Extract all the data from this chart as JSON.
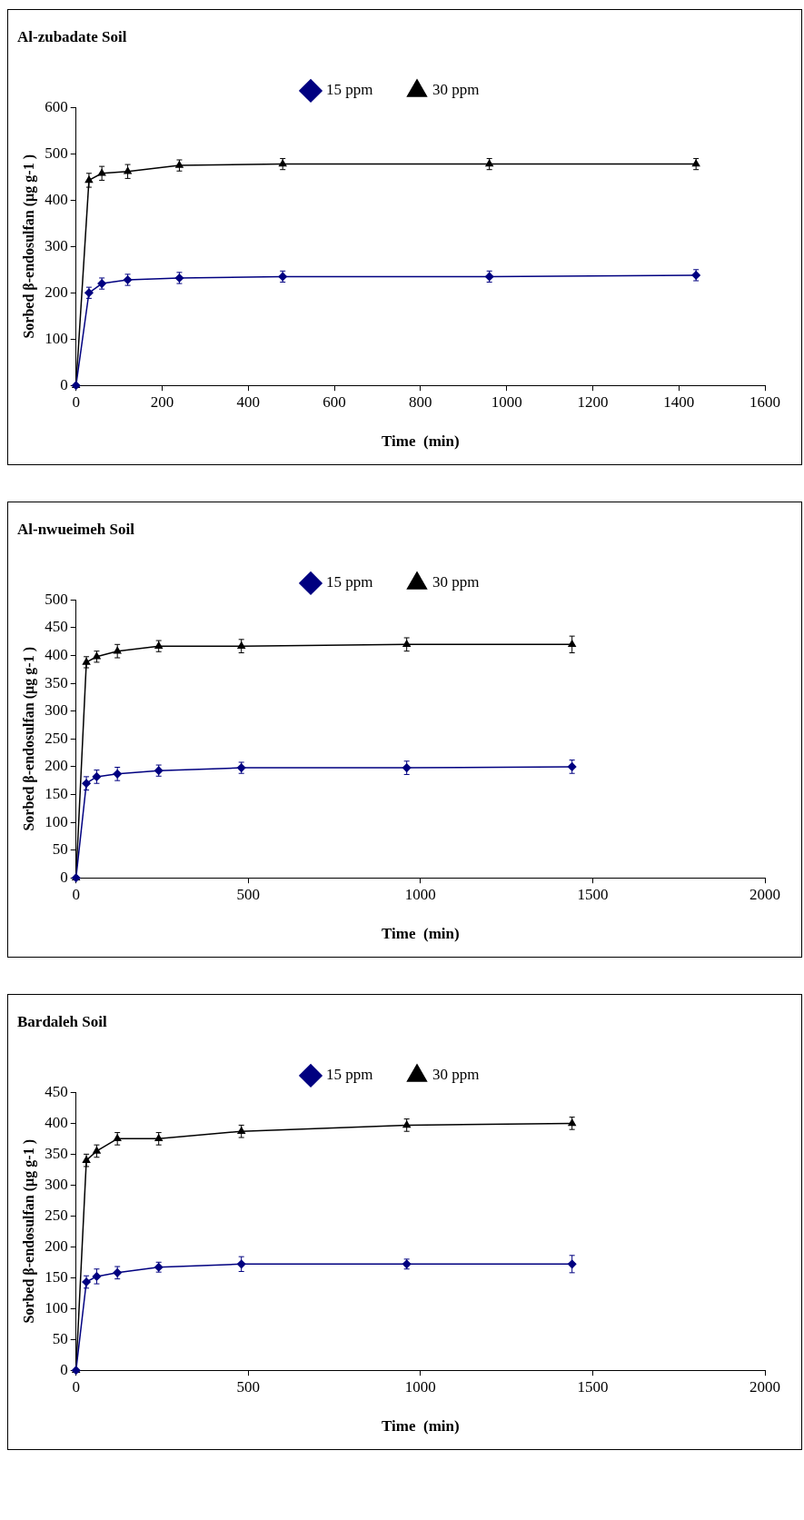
{
  "chart_data": [
    {
      "type": "line",
      "title": "Al-zubadate Soil",
      "xlabel": "Time  (min)",
      "ylabel": "Sorbed β-endosulfan (µg g-1 )",
      "x": [
        0,
        30,
        60,
        120,
        240,
        480,
        960,
        1440
      ],
      "xlim": [
        0,
        1600
      ],
      "xticks": [
        0,
        200,
        400,
        600,
        800,
        1000,
        1200,
        1400,
        1600
      ],
      "ylim": [
        0,
        600
      ],
      "yticks": [
        0,
        100,
        200,
        300,
        400,
        500,
        600
      ],
      "grid": false,
      "legend": "top",
      "series": [
        {
          "name": "15 ppm",
          "color": "#000080",
          "marker": "diamond",
          "values": [
            0,
            200,
            220,
            228,
            232,
            235,
            235,
            238
          ],
          "errors": [
            null,
            12,
            12,
            12,
            12,
            12,
            12,
            12
          ]
        },
        {
          "name": "30 ppm",
          "color": "#000000",
          "marker": "triangle",
          "values": [
            0,
            443,
            458,
            462,
            475,
            478,
            478,
            478
          ],
          "errors": [
            null,
            15,
            15,
            15,
            12,
            12,
            12,
            12
          ]
        }
      ]
    },
    {
      "type": "line",
      "title": "Al-nwueimeh Soil",
      "xlabel": "Time  (min)",
      "ylabel": "Sorbed β-endosulfan (µg g-1 )",
      "x": [
        0,
        30,
        60,
        120,
        240,
        480,
        960,
        1440
      ],
      "xlim": [
        0,
        2000
      ],
      "xticks": [
        0,
        500,
        1000,
        1500,
        2000
      ],
      "ylim": [
        0,
        500
      ],
      "yticks": [
        0,
        50,
        100,
        150,
        200,
        250,
        300,
        350,
        400,
        450,
        500
      ],
      "grid": false,
      "legend": "top",
      "series": [
        {
          "name": "15 ppm",
          "color": "#000080",
          "marker": "diamond",
          "values": [
            0,
            170,
            182,
            187,
            193,
            198,
            198,
            200
          ],
          "errors": [
            null,
            12,
            12,
            12,
            10,
            10,
            12,
            12
          ]
        },
        {
          "name": "30 ppm",
          "color": "#000000",
          "marker": "triangle",
          "values": [
            0,
            388,
            398,
            408,
            417,
            417,
            420,
            420
          ],
          "errors": [
            null,
            10,
            10,
            12,
            10,
            12,
            12,
            15
          ]
        }
      ]
    },
    {
      "type": "line",
      "title": "Bardaleh Soil",
      "xlabel": "Time  (min)",
      "ylabel": "Sorbed β-endosulfan (µg g-1 )",
      "x": [
        0,
        30,
        60,
        120,
        240,
        480,
        960,
        1440
      ],
      "xlim": [
        0,
        2000
      ],
      "xticks": [
        0,
        500,
        1000,
        1500,
        2000
      ],
      "ylim": [
        0,
        450
      ],
      "yticks": [
        0,
        50,
        100,
        150,
        200,
        250,
        300,
        350,
        400,
        450
      ],
      "grid": false,
      "legend": "top",
      "series": [
        {
          "name": "15 ppm",
          "color": "#000080",
          "marker": "diamond",
          "values": [
            0,
            143,
            152,
            158,
            167,
            172,
            172,
            172
          ],
          "errors": [
            null,
            10,
            12,
            10,
            8,
            12,
            8,
            14
          ]
        },
        {
          "name": "30 ppm",
          "color": "#000000",
          "marker": "triangle",
          "values": [
            0,
            340,
            355,
            375,
            375,
            387,
            397,
            400
          ],
          "errors": [
            null,
            10,
            10,
            10,
            10,
            10,
            10,
            10
          ]
        }
      ]
    }
  ]
}
